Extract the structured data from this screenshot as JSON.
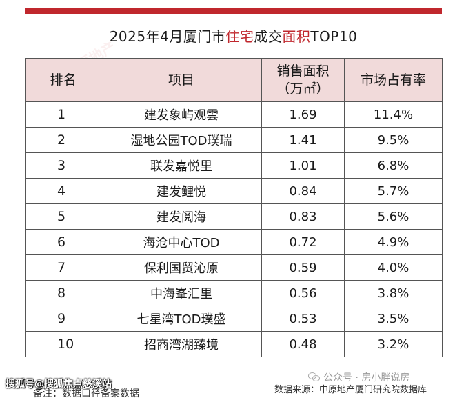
{
  "title": {
    "pre": "2025年4月厦门市",
    "hl1": "住宅",
    "mid": "成交",
    "hl2": "面积",
    "post": "TOP10"
  },
  "table": {
    "headers": [
      "排名",
      "项目",
      "销售面积\n（万㎡）",
      "市场占有率"
    ],
    "rows": [
      {
        "rank": "1",
        "project": "建发象屿观雲",
        "area": "1.69",
        "share": "11.4%"
      },
      {
        "rank": "2",
        "project": "湿地公园TOD璞瑞",
        "area": "1.41",
        "share": "9.5%"
      },
      {
        "rank": "3",
        "project": "联发嘉悦里",
        "area": "1.01",
        "share": "6.8%"
      },
      {
        "rank": "4",
        "project": "建发鲤悦",
        "area": "0.84",
        "share": "5.7%"
      },
      {
        "rank": "5",
        "project": "建发阅海",
        "area": "0.83",
        "share": "5.6%"
      },
      {
        "rank": "6",
        "project": "海沧中心TOD",
        "area": "0.72",
        "share": "4.9%"
      },
      {
        "rank": "7",
        "project": "保利国贸沁原",
        "area": "0.59",
        "share": "4.0%"
      },
      {
        "rank": "8",
        "project": "中海峯汇里",
        "area": "0.56",
        "share": "3.8%"
      },
      {
        "rank": "9",
        "project": "七星湾TOD璞盛",
        "area": "0.53",
        "share": "3.5%"
      },
      {
        "rank": "10",
        "project": "招商湾湖臻境",
        "area": "0.48",
        "share": "3.2%"
      }
    ]
  },
  "footer": {
    "note": "备注：数据口径备案数据",
    "source": "数据来源：中原地产厦门研究院数据库",
    "wechat": "公众号 · 房小胖说房",
    "watermark": "搜狐号@搜狐焦点慈溪站"
  },
  "colors": {
    "accent": "#c0272d",
    "header_bg": "#f1dada"
  }
}
